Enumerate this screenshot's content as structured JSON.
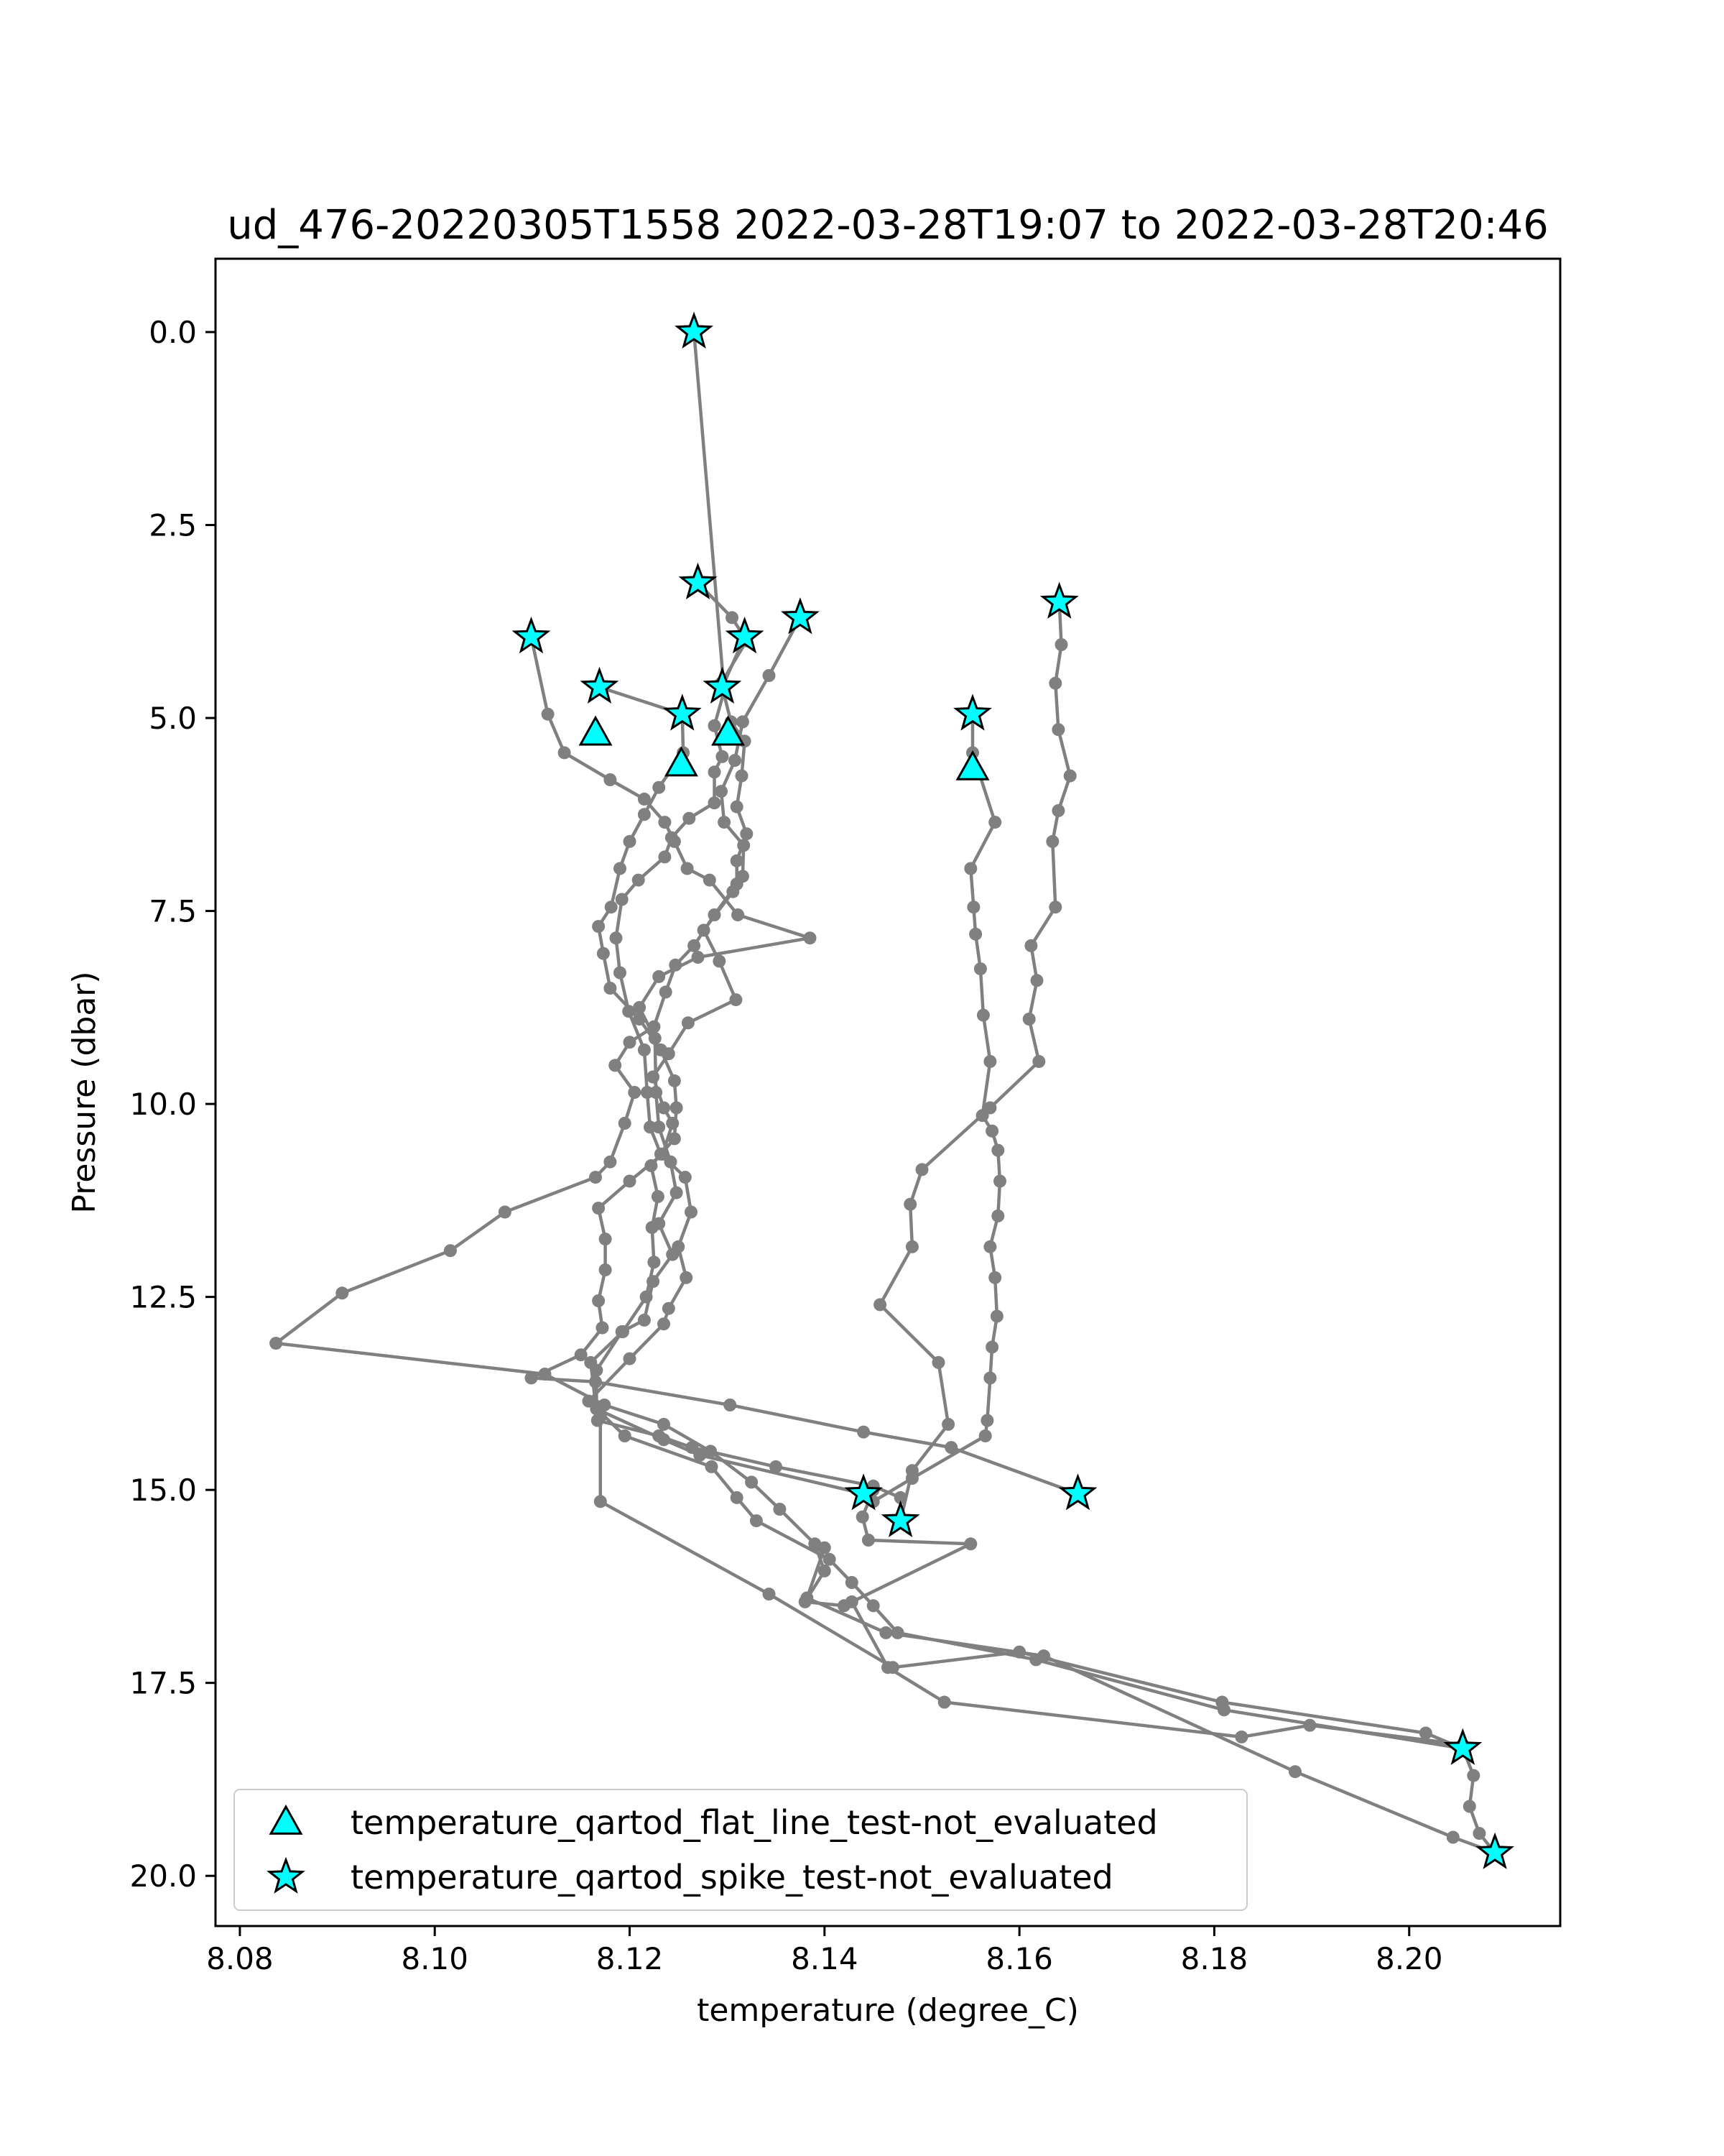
{
  "chart_data": {
    "type": "line",
    "title": "ud_476-20220305T1558 2022-03-28T19:07 to 2022-03-28T20:46",
    "xlabel": "temperature (degree_C)",
    "ylabel": "Pressure (dbar)",
    "xlim": [
      8.0775,
      8.2155
    ],
    "ylim": [
      20.65,
      -0.95
    ],
    "y_inverted": true,
    "grid": false,
    "legend_position": "lower-left",
    "xticks": [
      {
        "value": 8.08,
        "label": "8.08"
      },
      {
        "value": 8.1,
        "label": "8.10"
      },
      {
        "value": 8.12,
        "label": "8.12"
      },
      {
        "value": 8.14,
        "label": "8.14"
      },
      {
        "value": 8.16,
        "label": "8.16"
      },
      {
        "value": 8.18,
        "label": "8.18"
      },
      {
        "value": 8.2,
        "label": "8.20"
      }
    ],
    "yticks": [
      {
        "value": 0,
        "label": "0.0"
      },
      {
        "value": 2.5,
        "label": "2.5"
      },
      {
        "value": 5,
        "label": "5.0"
      },
      {
        "value": 7.5,
        "label": "7.5"
      },
      {
        "value": 10,
        "label": "10.0"
      },
      {
        "value": 12.5,
        "label": "12.5"
      },
      {
        "value": 15,
        "label": "15.0"
      },
      {
        "value": 17.5,
        "label": "17.5"
      },
      {
        "value": 20,
        "label": "20.0"
      }
    ],
    "colors": {
      "profile_line": "#808080",
      "marker_fill": "#00ffff",
      "marker_edge": "#000000"
    },
    "profiles": [
      {
        "points": [
          [
            8.1266,
            0.0
          ],
          [
            8.1297,
            4.65
          ],
          [
            8.1287,
            5.1
          ],
          [
            8.1295,
            5.5
          ],
          [
            8.1287,
            5.7
          ],
          [
            8.1287,
            6.1
          ],
          [
            8.1261,
            6.3
          ],
          [
            8.1243,
            6.55
          ],
          [
            8.1236,
            6.8
          ],
          [
            8.1209,
            7.1
          ],
          [
            8.1192,
            7.35
          ],
          [
            8.1186,
            7.85
          ],
          [
            8.119,
            8.3
          ],
          [
            8.1199,
            8.8
          ],
          [
            8.1215,
            9.3
          ],
          [
            8.1218,
            9.85
          ],
          [
            8.1221,
            10.3
          ],
          [
            8.1232,
            10.65
          ],
          [
            8.1257,
            10.95
          ],
          [
            8.1263,
            11.4
          ],
          [
            8.125,
            11.85
          ],
          [
            8.1258,
            12.25
          ],
          [
            8.124,
            12.65
          ],
          [
            8.1235,
            12.85
          ],
          [
            8.12,
            13.3
          ],
          [
            8.1158,
            13.85
          ],
          [
            8.1195,
            14.3
          ],
          [
            8.1284,
            14.7
          ],
          [
            8.131,
            15.1
          ],
          [
            8.133,
            15.4
          ],
          [
            8.1405,
            15.9
          ],
          [
            8.1428,
            16.2
          ],
          [
            8.145,
            16.5
          ],
          [
            8.1475,
            16.85
          ],
          [
            8.1617,
            17.2
          ],
          [
            8.181,
            17.85
          ],
          [
            8.2055,
            18.35
          ]
        ]
      },
      {
        "points": [
          [
            8.1099,
            3.95
          ],
          [
            8.1116,
            4.95
          ],
          [
            8.1133,
            5.45
          ],
          [
            8.118,
            5.8
          ],
          [
            8.1215,
            6.05
          ],
          [
            8.1236,
            6.35
          ],
          [
            8.1246,
            6.6
          ],
          [
            8.1259,
            6.95
          ],
          [
            8.1282,
            7.1
          ],
          [
            8.1311,
            7.55
          ],
          [
            8.1385,
            7.85
          ],
          [
            8.127,
            8.1
          ],
          [
            8.123,
            8.35
          ],
          [
            8.121,
            8.75
          ],
          [
            8.1226,
            9.15
          ],
          [
            8.1227,
            9.85
          ],
          [
            8.123,
            10.3
          ],
          [
            8.1242,
            10.75
          ],
          [
            8.1248,
            11.15
          ],
          [
            8.123,
            11.55
          ],
          [
            8.1244,
            11.95
          ],
          [
            8.1224,
            12.3
          ],
          [
            8.1215,
            12.8
          ],
          [
            8.1192,
            12.95
          ],
          [
            8.1166,
            13.45
          ],
          [
            8.1166,
            13.95
          ],
          [
            8.1235,
            14.35
          ],
          [
            8.1272,
            14.55
          ],
          [
            8.144,
            15.05
          ]
        ]
      },
      {
        "points": [
          [
            8.1169,
            4.6
          ],
          [
            8.1254,
            4.95
          ],
          [
            8.1255,
            5.45
          ],
          [
            8.123,
            5.9
          ],
          [
            8.1215,
            6.25
          ],
          [
            8.12,
            6.6
          ],
          [
            8.119,
            6.95
          ],
          [
            8.1181,
            7.45
          ],
          [
            8.1168,
            7.7
          ],
          [
            8.1173,
            8.05
          ],
          [
            8.118,
            8.5
          ],
          [
            8.121,
            8.9
          ],
          [
            8.1232,
            9.3
          ],
          [
            8.1246,
            9.7
          ],
          [
            8.1248,
            10.05
          ],
          [
            8.1246,
            10.45
          ],
          [
            8.1222,
            10.8
          ],
          [
            8.1229,
            11.2
          ],
          [
            8.1223,
            11.6
          ],
          [
            8.1225,
            12.05
          ],
          [
            8.1217,
            12.5
          ],
          [
            8.1193,
            12.95
          ],
          [
            8.116,
            13.35
          ],
          [
            8.1167,
            14.1
          ],
          [
            8.123,
            14.3
          ],
          [
            8.1264,
            14.45
          ],
          [
            8.135,
            14.7
          ],
          [
            8.145,
            14.95
          ],
          [
            8.1478,
            15.1
          ],
          [
            8.1478,
            15.4
          ]
        ]
      },
      {
        "points": [
          [
            8.1375,
            3.7
          ],
          [
            8.1343,
            4.45
          ],
          [
            8.1316,
            5.05
          ],
          [
            8.1308,
            5.55
          ],
          [
            8.1294,
            5.95
          ],
          [
            8.1297,
            6.35
          ],
          [
            8.1317,
            6.65
          ],
          [
            8.1316,
            7.05
          ],
          [
            8.1306,
            7.25
          ],
          [
            8.1276,
            7.75
          ],
          [
            8.1292,
            8.15
          ],
          [
            8.1309,
            8.65
          ],
          [
            8.126,
            8.95
          ],
          [
            8.124,
            9.35
          ],
          [
            8.1224,
            9.65
          ],
          [
            8.1235,
            10.05
          ],
          [
            8.1244,
            10.25
          ],
          [
            8.1234,
            10.65
          ],
          [
            8.12,
            11.0
          ],
          [
            8.1168,
            11.35
          ],
          [
            8.1175,
            11.75
          ],
          [
            8.1175,
            12.15
          ],
          [
            8.1168,
            12.55
          ],
          [
            8.1172,
            12.9
          ],
          [
            8.115,
            13.25
          ],
          [
            8.1099,
            13.55
          ],
          [
            8.1165,
            13.6
          ],
          [
            8.1303,
            13.9
          ],
          [
            8.144,
            14.25
          ],
          [
            8.153,
            14.45
          ],
          [
            8.166,
            15.05
          ]
        ]
      },
      {
        "points": [
          [
            8.1318,
            3.95
          ],
          [
            8.1295,
            4.6
          ],
          [
            8.1304,
            5.05
          ],
          [
            8.1318,
            5.3
          ],
          [
            8.1315,
            5.75
          ],
          [
            8.131,
            6.15
          ],
          [
            8.132,
            6.5
          ],
          [
            8.131,
            6.85
          ],
          [
            8.131,
            7.15
          ],
          [
            8.1287,
            7.55
          ],
          [
            8.1266,
            7.95
          ],
          [
            8.1247,
            8.2
          ],
          [
            8.1237,
            8.55
          ],
          [
            8.1225,
            9.0
          ],
          [
            8.12,
            9.2
          ],
          [
            8.1185,
            9.5
          ],
          [
            8.1205,
            9.85
          ],
          [
            8.1195,
            10.25
          ],
          [
            8.118,
            10.75
          ],
          [
            8.1165,
            10.95
          ],
          [
            8.1072,
            11.4
          ],
          [
            8.1016,
            11.9
          ],
          [
            8.0905,
            12.45
          ],
          [
            8.0837,
            13.1
          ],
          [
            8.1113,
            13.5
          ],
          [
            8.1174,
            13.9
          ],
          [
            8.1235,
            14.15
          ],
          [
            8.1283,
            14.5
          ],
          [
            8.1325,
            14.9
          ],
          [
            8.1354,
            15.25
          ],
          [
            8.139,
            15.7
          ],
          [
            8.14,
            16.05
          ],
          [
            8.138,
            16.45
          ],
          [
            8.142,
            16.5
          ],
          [
            8.155,
            15.7
          ],
          [
            8.1445,
            15.65
          ],
          [
            8.1439,
            15.35
          ],
          [
            8.145,
            15.0
          ]
        ]
      },
      {
        "points": [
          [
            8.127,
            3.25
          ],
          [
            8.1305,
            3.7
          ],
          [
            8.132,
            4.0
          ],
          [
            8.1294,
            4.55
          ]
        ]
      },
      {
        "points": [
          [
            8.1552,
            4.95
          ],
          [
            8.1552,
            5.45
          ],
          [
            8.1575,
            6.35
          ],
          [
            8.155,
            6.95
          ],
          [
            8.1553,
            7.45
          ],
          [
            8.1555,
            7.8
          ],
          [
            8.156,
            8.25
          ],
          [
            8.1563,
            8.85
          ],
          [
            8.157,
            9.45
          ],
          [
            8.1562,
            10.15
          ],
          [
            8.1572,
            10.35
          ],
          [
            8.1578,
            10.6
          ],
          [
            8.158,
            11.0
          ],
          [
            8.1578,
            11.45
          ],
          [
            8.157,
            11.85
          ],
          [
            8.1575,
            12.25
          ],
          [
            8.1577,
            12.75
          ],
          [
            8.1572,
            13.15
          ],
          [
            8.157,
            13.55
          ],
          [
            8.1567,
            14.1
          ],
          [
            8.1565,
            14.3
          ],
          [
            8.149,
            14.85
          ],
          [
            8.145,
            15.15
          ]
        ]
      },
      {
        "points": [
          [
            8.1641,
            3.5
          ],
          [
            8.1643,
            4.05
          ],
          [
            8.1637,
            4.55
          ],
          [
            8.164,
            5.15
          ],
          [
            8.1652,
            5.75
          ],
          [
            8.164,
            6.2
          ],
          [
            8.1634,
            6.6
          ],
          [
            8.1637,
            7.45
          ],
          [
            8.1612,
            7.95
          ],
          [
            8.1618,
            8.4
          ],
          [
            8.161,
            8.9
          ],
          [
            8.162,
            9.45
          ],
          [
            8.157,
            10.05
          ],
          [
            8.15,
            10.85
          ],
          [
            8.1488,
            11.3
          ],
          [
            8.149,
            11.85
          ],
          [
            8.1457,
            12.6
          ],
          [
            8.1517,
            13.35
          ],
          [
            8.1527,
            14.15
          ],
          [
            8.149,
            14.75
          ],
          [
            8.1478,
            15.4
          ]
        ]
      },
      {
        "points": [
          [
            8.117,
            14.05
          ],
          [
            8.117,
            15.15
          ],
          [
            8.1343,
            16.35
          ],
          [
            8.147,
            17.3
          ],
          [
            8.16,
            17.1
          ],
          [
            8.1808,
            17.75
          ],
          [
            8.2017,
            18.15
          ],
          [
            8.2055,
            18.35
          ],
          [
            8.2066,
            18.7
          ],
          [
            8.2062,
            19.1
          ],
          [
            8.2072,
            19.45
          ],
          [
            8.2088,
            19.7
          ]
        ]
      },
      {
        "points": [
          [
            8.1428,
            16.45
          ],
          [
            8.1465,
            17.3
          ],
          [
            8.1523,
            17.75
          ],
          [
            8.1828,
            18.2
          ],
          [
            8.1898,
            18.05
          ],
          [
            8.2055,
            18.3
          ]
        ]
      },
      {
        "points": [
          [
            8.14,
            15.75
          ],
          [
            8.1382,
            16.4
          ],
          [
            8.1463,
            16.85
          ],
          [
            8.1625,
            17.15
          ],
          [
            8.1883,
            18.65
          ],
          [
            8.2045,
            19.5
          ],
          [
            8.2088,
            19.7
          ]
        ]
      }
    ],
    "series": [
      {
        "name": "temperature_qartod_flat_line_test-not_evaluated",
        "marker": "triangle",
        "points": [
          [
            8.1165,
            5.2
          ],
          [
            8.1253,
            5.6
          ],
          [
            8.1301,
            5.2
          ],
          [
            8.1552,
            5.65
          ]
        ]
      },
      {
        "name": "temperature_qartod_spike_test-not_evaluated",
        "marker": "star",
        "points": [
          [
            8.1266,
            0.0
          ],
          [
            8.127,
            3.25
          ],
          [
            8.1099,
            3.95
          ],
          [
            8.1318,
            3.95
          ],
          [
            8.1375,
            3.7
          ],
          [
            8.1641,
            3.5
          ],
          [
            8.1169,
            4.6
          ],
          [
            8.1295,
            4.6
          ],
          [
            8.1254,
            4.95
          ],
          [
            8.1552,
            4.95
          ],
          [
            8.144,
            15.05
          ],
          [
            8.166,
            15.05
          ],
          [
            8.1478,
            15.4
          ],
          [
            8.2055,
            18.35
          ],
          [
            8.2088,
            19.7
          ]
        ]
      }
    ]
  }
}
